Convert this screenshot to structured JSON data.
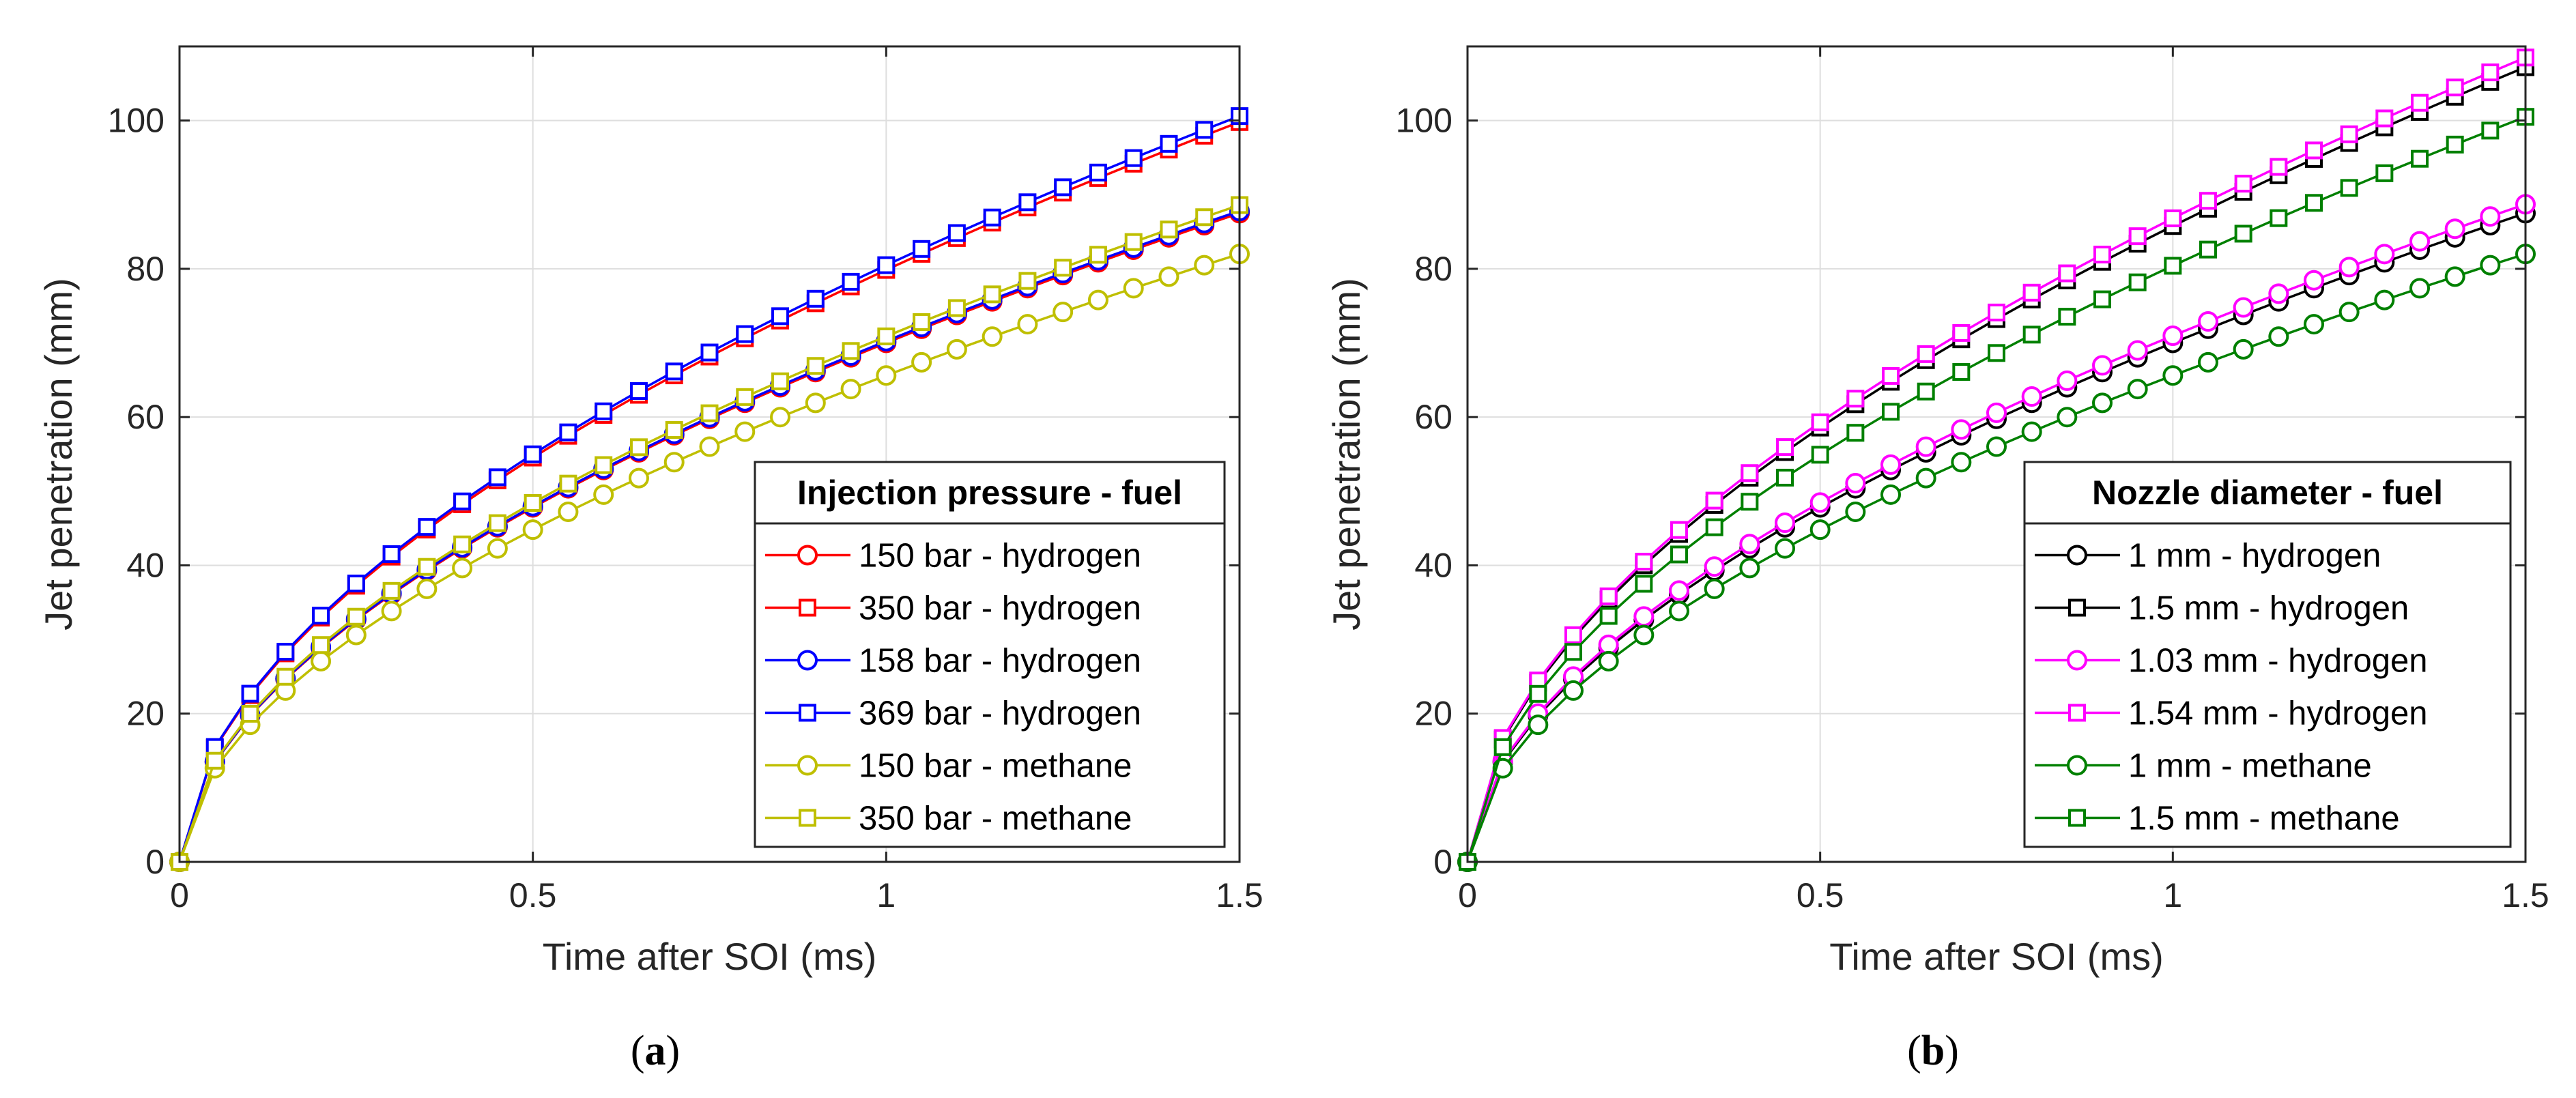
{
  "chart_data": [
    {
      "type": "line",
      "panel_label": "(a)",
      "panel_letter": "a",
      "xlabel": "Time after SOI (ms)",
      "ylabel": "Jet penetration (mm)",
      "xlim": [
        0,
        1.5
      ],
      "ylim": [
        0,
        110
      ],
      "xticks": [
        0,
        0.5,
        1,
        1.5
      ],
      "xtick_labels": [
        "0",
        "0.5",
        "1",
        "1.5"
      ],
      "yticks": [
        0,
        20,
        40,
        60,
        80,
        100
      ],
      "ytick_labels": [
        "0",
        "20",
        "40",
        "60",
        "80",
        "100"
      ],
      "grid": true,
      "legend_title": "Injection pressure - fuel",
      "legend_position": "bottom-right",
      "x_points": "t = 0, then 0.05 to 1.5 ms in steps of 0.05 ms; penetration follows a*t^0.55 through the origin",
      "series": [
        {
          "name": "150 bar - hydrogen",
          "color": "#ff0000",
          "marker": "circle",
          "end_value": 87.5
        },
        {
          "name": "350 bar - hydrogen",
          "color": "#ff0000",
          "marker": "square",
          "end_value": 99.8
        },
        {
          "name": "158 bar - hydrogen",
          "color": "#0000ff",
          "marker": "circle",
          "end_value": 87.8
        },
        {
          "name": "369 bar - hydrogen",
          "color": "#0000ff",
          "marker": "square",
          "end_value": 100.6
        },
        {
          "name": "150 bar - methane",
          "color": "#bfbf00",
          "marker": "circle",
          "end_value": 82.0
        },
        {
          "name": "350 bar - methane",
          "color": "#bfbf00",
          "marker": "square",
          "end_value": 88.6
        }
      ]
    },
    {
      "type": "line",
      "panel_label": "(b)",
      "panel_letter": "b",
      "xlabel": "Time after SOI (ms)",
      "ylabel": "Jet penetration (mm)",
      "xlim": [
        0,
        1.5
      ],
      "ylim": [
        0,
        110
      ],
      "xticks": [
        0,
        0.5,
        1,
        1.5
      ],
      "xtick_labels": [
        "0",
        "0.5",
        "1",
        "1.5"
      ],
      "yticks": [
        0,
        20,
        40,
        60,
        80,
        100
      ],
      "ytick_labels": [
        "0",
        "20",
        "40",
        "60",
        "80",
        "100"
      ],
      "grid": true,
      "legend_title": "Nozzle diameter - fuel",
      "legend_position": "bottom-right",
      "x_points": "t = 0, then 0.05 to 1.5 ms in steps of 0.05 ms; penetration follows a*t^0.55 through the origin",
      "series": [
        {
          "name": "1 mm - hydrogen",
          "color": "#000000",
          "marker": "circle",
          "end_value": 87.5
        },
        {
          "name": "1.5 mm - hydrogen",
          "color": "#000000",
          "marker": "square",
          "end_value": 107.2
        },
        {
          "name": "1.03 mm - hydrogen",
          "color": "#ff00ff",
          "marker": "circle",
          "end_value": 88.7
        },
        {
          "name": "1.54 mm - hydrogen",
          "color": "#ff00ff",
          "marker": "square",
          "end_value": 108.5
        },
        {
          "name": "1 mm - methane",
          "color": "#008000",
          "marker": "circle",
          "end_value": 82.0
        },
        {
          "name": "1.5 mm - methane",
          "color": "#008000",
          "marker": "square",
          "end_value": 100.5
        }
      ]
    }
  ]
}
